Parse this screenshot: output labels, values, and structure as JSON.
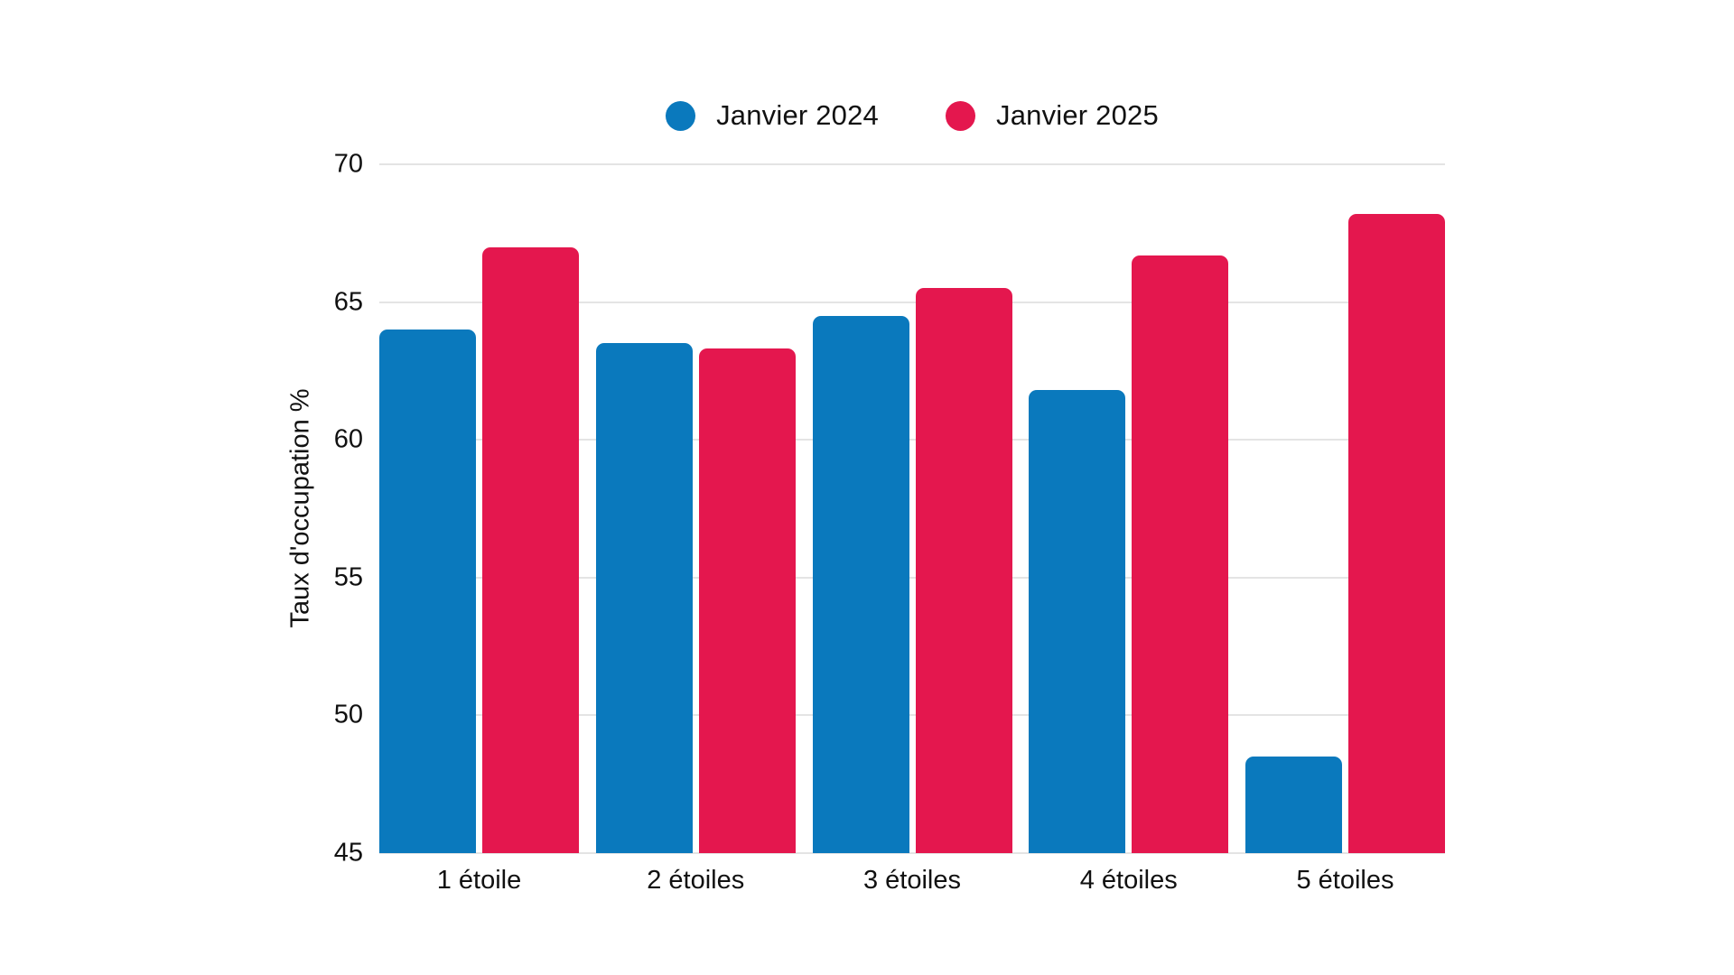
{
  "chart_data": {
    "type": "bar",
    "title": "",
    "categories": [
      "1 étoile",
      "2 étoiles",
      "3 étoiles",
      "4 étoiles",
      "5 étoiles"
    ],
    "series": [
      {
        "name": "Janvier 2024",
        "color": "#0A79BD",
        "values": [
          64.0,
          63.5,
          64.5,
          61.8,
          48.5
        ]
      },
      {
        "name": "Janvier 2025",
        "color": "#E4174E",
        "values": [
          67.0,
          63.3,
          65.5,
          66.7,
          68.2
        ]
      }
    ],
    "xlabel": "",
    "ylabel": "Taux d'occupation %",
    "ylim": [
      45,
      70
    ],
    "yticks": [
      70,
      65,
      60,
      55,
      50,
      45
    ],
    "grid": true,
    "legend_position": "top"
  },
  "colors": {
    "background": "#ffffff",
    "grid": "#e4e4e4",
    "text": "#111111",
    "series_2024": "#0A79BD",
    "series_2025": "#E4174E"
  }
}
